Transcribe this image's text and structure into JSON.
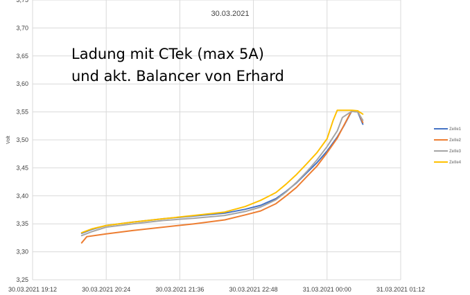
{
  "chart_data": {
    "type": "line",
    "title": "30.03.2021",
    "annotation": [
      "Ladung mit CTek (max 5A)",
      "und akt. Balancer von Erhard"
    ],
    "xlabel": "",
    "ylabel": "Volt",
    "ylim": [
      3.25,
      3.75
    ],
    "yticks": [
      "3,25",
      "3,30",
      "3,35",
      "3,40",
      "3,45",
      "3,50",
      "3,55",
      "3,60",
      "3,65",
      "3,70",
      "3,75"
    ],
    "xticks": [
      "30.03.2021 19:12",
      "30.03.2021 20:24",
      "30.03.2021 21:36",
      "30.03.2021 22:48",
      "31.03.2021 00:00",
      "31.03.2021 01:12"
    ],
    "xlim": [
      "30.03.2021 19:12",
      "31.03.2021 01:12"
    ],
    "grid": true,
    "legend_position": "right",
    "series": [
      {
        "name": "Zelle1",
        "color": "#4472c4",
        "x": [
          "30.03.2021 20:00",
          "30.03.2021 20:10",
          "30.03.2021 20:24",
          "30.03.2021 20:50",
          "30.03.2021 21:20",
          "30.03.2021 21:50",
          "30.03.2021 22:20",
          "30.03.2021 22:40",
          "30.03.2021 22:55",
          "30.03.2021 23:10",
          "30.03.2021 23:20",
          "30.03.2021 23:30",
          "30.03.2021 23:40",
          "30.03.2021 23:50",
          "31.03.2021 00:00",
          "31.03.2021 00:10",
          "31.03.2021 00:17",
          "31.03.2021 00:24",
          "31.03.2021 00:30",
          "31.03.2021 00:35"
        ],
        "values": [
          3.333,
          3.34,
          3.347,
          3.353,
          3.359,
          3.364,
          3.369,
          3.376,
          3.383,
          3.395,
          3.408,
          3.423,
          3.441,
          3.459,
          3.48,
          3.505,
          3.527,
          3.551,
          3.55,
          3.528
        ]
      },
      {
        "name": "Zelle2",
        "color": "#ed7d31",
        "x": [
          "30.03.2021 20:00",
          "30.03.2021 20:05",
          "30.03.2021 20:24",
          "30.03.2021 20:50",
          "30.03.2021 21:20",
          "30.03.2021 21:50",
          "30.03.2021 22:20",
          "30.03.2021 22:40",
          "30.03.2021 22:55",
          "30.03.2021 23:10",
          "30.03.2021 23:20",
          "30.03.2021 23:30",
          "30.03.2021 23:40",
          "30.03.2021 23:50",
          "31.03.2021 00:00",
          "31.03.2021 00:10",
          "31.03.2021 00:17",
          "31.03.2021 00:24",
          "31.03.2021 00:30",
          "31.03.2021 00:35"
        ],
        "values": [
          3.316,
          3.327,
          3.332,
          3.338,
          3.344,
          3.35,
          3.357,
          3.366,
          3.373,
          3.386,
          3.4,
          3.415,
          3.434,
          3.453,
          3.477,
          3.503,
          3.528,
          3.552,
          3.552,
          3.531
        ]
      },
      {
        "name": "Zelle3",
        "color": "#a5a5a5",
        "x": [
          "30.03.2021 20:00",
          "30.03.2021 20:10",
          "30.03.2021 20:24",
          "30.03.2021 20:50",
          "30.03.2021 21:20",
          "30.03.2021 21:50",
          "30.03.2021 22:20",
          "30.03.2021 22:40",
          "30.03.2021 22:55",
          "30.03.2021 23:10",
          "30.03.2021 23:20",
          "30.03.2021 23:30",
          "30.03.2021 23:40",
          "30.03.2021 23:50",
          "31.03.2021 00:00",
          "31.03.2021 00:10",
          "31.03.2021 00:15",
          "31.03.2021 00:24",
          "31.03.2021 00:30",
          "31.03.2021 00:35"
        ],
        "values": [
          3.329,
          3.336,
          3.344,
          3.35,
          3.356,
          3.36,
          3.365,
          3.372,
          3.38,
          3.393,
          3.407,
          3.424,
          3.443,
          3.464,
          3.488,
          3.516,
          3.54,
          3.551,
          3.55,
          3.535
        ]
      },
      {
        "name": "Zelle4",
        "color": "#ffc000",
        "x": [
          "30.03.2021 20:00",
          "30.03.2021 20:10",
          "30.03.2021 20:24",
          "30.03.2021 20:50",
          "30.03.2021 21:20",
          "30.03.2021 21:50",
          "30.03.2021 22:20",
          "30.03.2021 22:40",
          "30.03.2021 22:55",
          "30.03.2021 23:10",
          "30.03.2021 23:20",
          "30.03.2021 23:30",
          "30.03.2021 23:40",
          "30.03.2021 23:50",
          "31.03.2021 00:00",
          "31.03.2021 00:06",
          "31.03.2021 00:10",
          "31.03.2021 00:24",
          "31.03.2021 00:30",
          "31.03.2021 00:35"
        ],
        "values": [
          3.334,
          3.341,
          3.347,
          3.353,
          3.359,
          3.365,
          3.371,
          3.381,
          3.392,
          3.406,
          3.421,
          3.438,
          3.457,
          3.477,
          3.502,
          3.535,
          3.553,
          3.553,
          3.552,
          3.546
        ]
      }
    ]
  }
}
